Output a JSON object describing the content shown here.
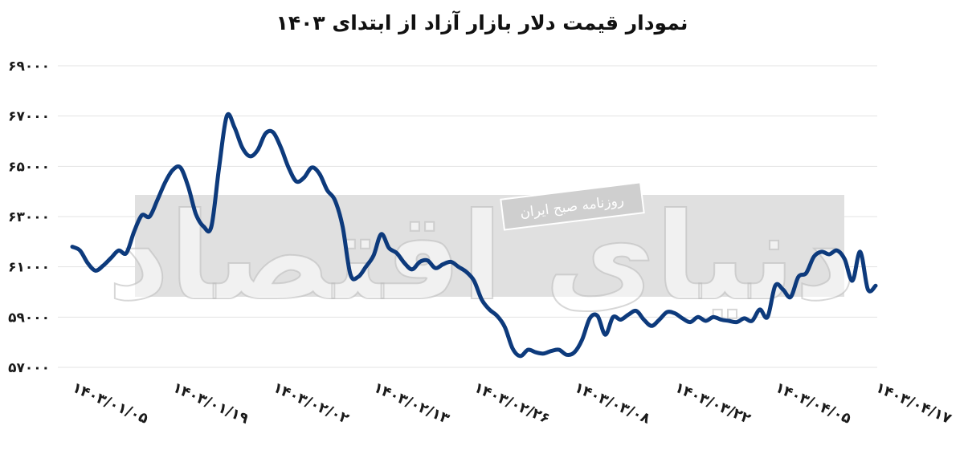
{
  "colors": {
    "line": "#0d3a7c",
    "grid": "#e3e3e3",
    "watermark_band": "#e0e0e0",
    "text": "#1a1a1a"
  },
  "watermark": {
    "logo": "دنیای اقتصاد",
    "caption": "روزنامه صبح ایران"
  },
  "chart_data": {
    "type": "line",
    "title": "نمودار قیمت دلار بازار آزاد از ابتدای ۱۴۰۳",
    "xlabel": "",
    "ylabel": "",
    "ylim": [
      57000,
      69000
    ],
    "y_ticks": [
      57000,
      59000,
      61000,
      63000,
      65000,
      67000,
      69000
    ],
    "y_tick_labels": [
      "۵۷۰۰۰",
      "۵۹۰۰۰",
      "۶۱۰۰۰",
      "۶۳۰۰۰",
      "۶۵۰۰۰",
      "۶۷۰۰۰",
      "۶۹۰۰۰"
    ],
    "x_tick_labels": [
      "۱۴۰۳/۰۱/۰۵",
      "۱۴۰۳/۰۱/۱۹",
      "۱۴۰۳/۰۲/۰۲",
      "۱۴۰۳/۰۲/۱۳",
      "۱۴۰۳/۰۲/۲۶",
      "۱۴۰۳/۰۳/۰۸",
      "۱۴۰۳/۰۳/۲۲",
      "۱۴۰۳/۰۴/۰۵",
      "۱۴۰۳/۰۴/۱۷"
    ],
    "grid": true,
    "legend": "none",
    "series": [
      {
        "values": [
          61800,
          61650,
          61150,
          60850,
          61050,
          61350,
          61650,
          61550,
          62400,
          63050,
          63000,
          63650,
          64350,
          64850,
          64950,
          64200,
          63100,
          62600,
          62600,
          64950,
          67000,
          66550,
          65750,
          65400,
          65650,
          66300,
          66350,
          65750,
          64950,
          64400,
          64550,
          64950,
          64700,
          64050,
          63650,
          62600,
          60700,
          60600,
          61000,
          61450,
          62300,
          61750,
          61550,
          61150,
          60900,
          61200,
          61250,
          60950,
          61100,
          61200,
          61000,
          60800,
          60450,
          59700,
          59300,
          59050,
          58600,
          57750,
          57450,
          57700,
          57600,
          57550,
          57650,
          57700,
          57500,
          57600,
          58100,
          58950,
          59050,
          58300,
          59000,
          58900,
          59100,
          59250,
          58900,
          58650,
          58900,
          59200,
          59150,
          58950,
          58800,
          59000,
          58850,
          59000,
          58900,
          58850,
          58800,
          58950,
          58850,
          59300,
          59000,
          60250,
          60100,
          59800,
          60600,
          60750,
          61400,
          61600,
          61500,
          61650,
          61300,
          60450,
          61600,
          60100,
          60250
        ]
      }
    ]
  }
}
